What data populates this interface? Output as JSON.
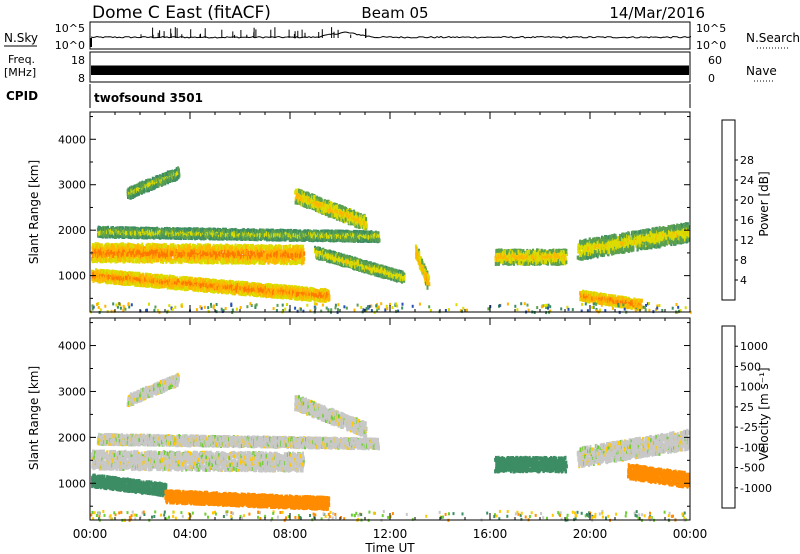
{
  "header": {
    "title": "Dome C East (fitACF)",
    "beam": "Beam 05",
    "date": "14/Mar/2016"
  },
  "strips": {
    "nsky_label": "N.Sky",
    "nsky_ticks": [
      "10^5",
      "10^0"
    ],
    "nsearch_label": "N.Search",
    "freq_label_1": "Freq.",
    "freq_label_2": "[MHz]",
    "freq_ticks": [
      "18",
      "8"
    ],
    "nave_label": "Nave",
    "nave_ticks": [
      "60",
      "0"
    ],
    "cpid_label": "CPID",
    "cpid_value": "twofsound 3501"
  },
  "chart_data": [
    {
      "type": "heatmap",
      "panel": "power",
      "xlabel": "Time UT",
      "ylabel": "Slant Range [km]",
      "x_ticks": [
        "00:00",
        "04:00",
        "08:00",
        "12:00",
        "16:00",
        "20:00",
        "00:00"
      ],
      "y_ticks": [
        1000,
        2000,
        3000,
        4000
      ],
      "ylim": [
        200,
        4600
      ],
      "colorbar_label": "Power [dB]",
      "colorbar_ticks": [
        "4",
        "8",
        "12",
        "16",
        "20",
        "24",
        "28"
      ],
      "colorbar_colors": [
        "#0000ff",
        "#2750b4",
        "#3c8c64",
        "#5aa050",
        "#dcdc00",
        "#ffb400",
        "#ff7800",
        "#ff3c00",
        "#e10000"
      ],
      "features": [
        {
          "t0": 0.0,
          "t1": 8.5,
          "r_start": 1550,
          "r_end": 1500,
          "width": 380,
          "value": 26
        },
        {
          "t0": 0.0,
          "t1": 9.5,
          "r_start": 1050,
          "r_end": 600,
          "width": 250,
          "value": 26
        },
        {
          "t0": 0.3,
          "t1": 11.5,
          "r_start": 2000,
          "r_end": 1900,
          "width": 200,
          "value": 18
        },
        {
          "t0": 1.5,
          "t1": 3.5,
          "r_start": 2850,
          "r_end": 3300,
          "width": 220,
          "value": 18
        },
        {
          "t0": 8.2,
          "t1": 11.0,
          "r_start": 2800,
          "r_end": 2200,
          "width": 300,
          "value": 22
        },
        {
          "t0": 9.0,
          "t1": 12.5,
          "r_start": 1550,
          "r_end": 1000,
          "width": 220,
          "value": 20
        },
        {
          "t0": 13.0,
          "t1": 13.5,
          "r_start": 1600,
          "r_end": 900,
          "width": 250,
          "value": 24
        },
        {
          "t0": 16.2,
          "t1": 19.0,
          "r_start": 1450,
          "r_end": 1450,
          "width": 300,
          "value": 22
        },
        {
          "t0": 19.5,
          "t1": 24.0,
          "r_start": 1600,
          "r_end": 2000,
          "width": 400,
          "value": 20
        },
        {
          "t0": 19.6,
          "t1": 22.0,
          "r_start": 600,
          "r_end": 400,
          "width": 200,
          "value": 26
        }
      ]
    },
    {
      "type": "heatmap",
      "panel": "velocity",
      "xlabel": "Time UT",
      "ylabel": "Slant Range [km]",
      "x_ticks": [
        "00:00",
        "04:00",
        "08:00",
        "12:00",
        "16:00",
        "20:00",
        "00:00"
      ],
      "y_ticks": [
        1000,
        2000,
        3000,
        4000
      ],
      "ylim": [
        200,
        4600
      ],
      "colorbar_label": "Velocity [m s⁻¹]",
      "colorbar_ticks": [
        "1000",
        "500",
        "100",
        "25",
        "-25",
        "-100",
        "-500",
        "-1000"
      ],
      "colorbar_colors": [
        "#0000ff",
        "#2756a5",
        "#3c8c64",
        "#6ecd32",
        "#c8c8c8",
        "#ffc800",
        "#ff8c00",
        "#ff5000",
        "#e10000"
      ],
      "features": [
        {
          "t0": 0.0,
          "t1": 8.5,
          "r_start": 1550,
          "r_end": 1500,
          "width": 380,
          "value": 0
        },
        {
          "t0": 0.0,
          "t1": 3.0,
          "r_start": 1100,
          "r_end": 900,
          "width": 250,
          "value": 150
        },
        {
          "t0": 3.0,
          "t1": 9.5,
          "r_start": 750,
          "r_end": 600,
          "width": 250,
          "value": -200
        },
        {
          "t0": 0.3,
          "t1": 11.5,
          "r_start": 2000,
          "r_end": 1900,
          "width": 200,
          "value": 0
        },
        {
          "t0": 1.5,
          "t1": 3.5,
          "r_start": 2850,
          "r_end": 3300,
          "width": 220,
          "value": 0
        },
        {
          "t0": 8.2,
          "t1": 11.0,
          "r_start": 2800,
          "r_end": 2200,
          "width": 300,
          "value": 0
        },
        {
          "t0": 16.2,
          "t1": 19.0,
          "r_start": 1450,
          "r_end": 1450,
          "width": 300,
          "value": 150
        },
        {
          "t0": 19.5,
          "t1": 24.0,
          "r_start": 1600,
          "r_end": 2000,
          "width": 400,
          "value": 0
        },
        {
          "t0": 21.5,
          "t1": 24.0,
          "r_start": 1300,
          "r_end": 1100,
          "width": 300,
          "value": -150
        }
      ]
    }
  ]
}
